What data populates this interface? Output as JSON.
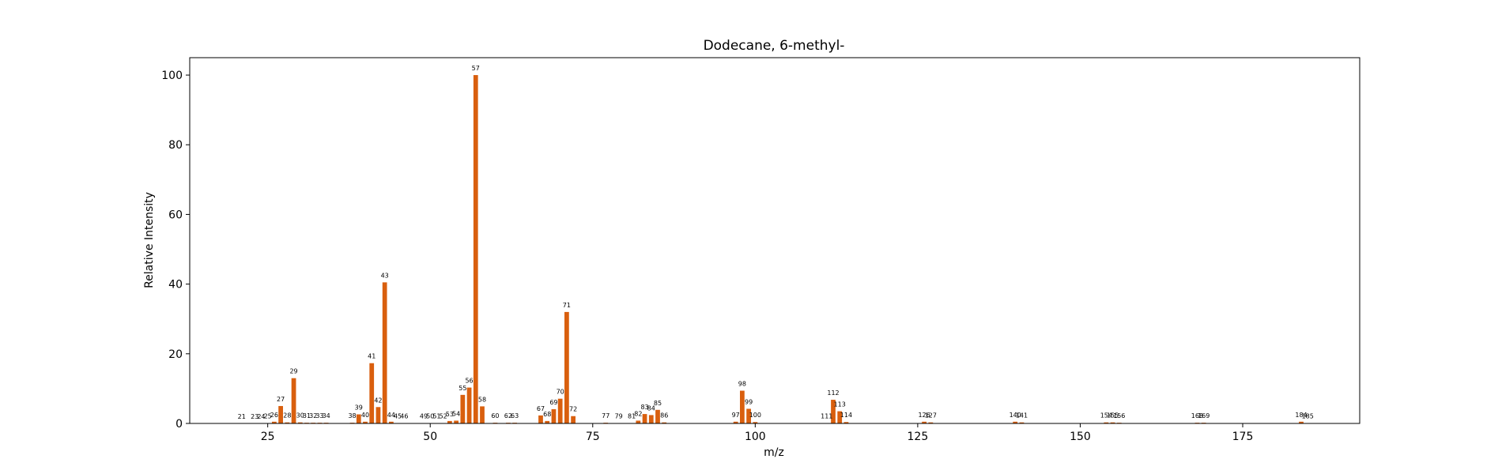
{
  "chart_data": {
    "type": "bar",
    "title": "Dodecane, 6-methyl-",
    "xlabel": "m/z",
    "ylabel": "Relative Intensity",
    "xlim": [
      13,
      193
    ],
    "ylim": [
      0,
      105
    ],
    "xticks": [
      25,
      50,
      75,
      100,
      125,
      150,
      175
    ],
    "yticks": [
      0,
      20,
      40,
      60,
      80,
      100
    ],
    "grid": false,
    "bar_color": "#d95f0e",
    "series": [
      {
        "x": [
          21,
          23,
          24,
          25,
          26,
          27,
          28,
          29,
          30,
          31,
          32,
          33,
          34,
          38,
          39,
          40,
          41,
          42,
          43,
          44,
          45,
          46,
          49,
          50,
          51,
          52,
          53,
          54,
          55,
          56,
          57,
          58,
          60,
          62,
          63,
          67,
          68,
          69,
          70,
          71,
          72,
          77,
          79,
          81,
          82,
          83,
          84,
          85,
          86,
          97,
          98,
          99,
          100,
          111,
          112,
          113,
          114,
          126,
          127,
          140,
          141,
          154,
          155,
          156,
          168,
          169,
          184,
          185
        ],
        "values": [
          0.05,
          0.05,
          0.05,
          0.1,
          0.5,
          5.0,
          0.3,
          13.0,
          0.3,
          0.2,
          0.2,
          0.2,
          0.2,
          0.2,
          2.6,
          0.5,
          17.3,
          4.7,
          40.5,
          0.5,
          0.1,
          0.1,
          0.1,
          0.1,
          0.1,
          0.1,
          0.7,
          0.8,
          8.2,
          10.3,
          100.0,
          4.9,
          0.2,
          0.2,
          0.2,
          2.3,
          0.7,
          4.1,
          7.1,
          32.0,
          2.1,
          0.2,
          0.1,
          0.1,
          0.8,
          2.7,
          2.4,
          3.9,
          0.3,
          0.5,
          9.4,
          4.2,
          0.4,
          0.1,
          6.8,
          3.5,
          0.4,
          0.5,
          0.3,
          0.5,
          0.3,
          0.3,
          0.3,
          0.2,
          0.2,
          0.2,
          0.5,
          0.1
        ],
        "labels": [
          "21",
          "23",
          "24",
          "25",
          "26",
          "27",
          "28",
          "29",
          "30",
          "31",
          "32",
          "33",
          "34",
          "38",
          "39",
          "40",
          "41",
          "42",
          "43",
          "44",
          "45",
          "46",
          "49",
          "50",
          "51",
          "52",
          "53",
          "54",
          "55",
          "56",
          "57",
          "58",
          "60",
          "62",
          "63",
          "67",
          "68",
          "69",
          "70",
          "71",
          "72",
          "77",
          "79",
          "81",
          "82",
          "83",
          "84",
          "85",
          "86",
          "97",
          "98",
          "99",
          "100",
          "111",
          "112",
          "113",
          "114",
          "126",
          "127",
          "140",
          "141",
          "154",
          "155",
          "156",
          "168",
          "169",
          "184",
          "185"
        ]
      }
    ]
  }
}
